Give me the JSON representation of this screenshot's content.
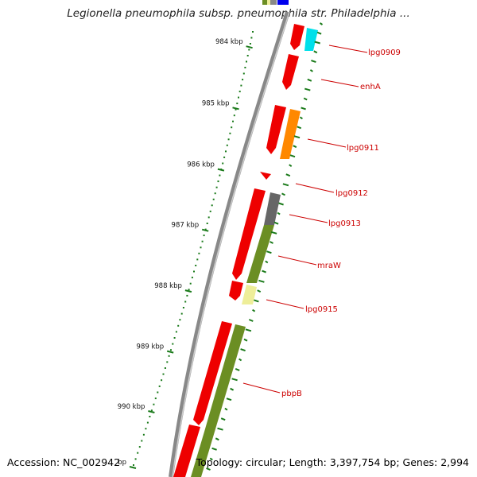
{
  "header": {
    "title": "Legionella pneumophila subsp. pneumophila str. Philadelphia ..."
  },
  "footer": {
    "accession": "Accession: NC_002942",
    "topology": "Topology: circular; Length: 3,397,754 bp; Genes: 2,994"
  },
  "ruler": {
    "ticks": [
      "984 kbp",
      "985 kbp",
      "986 kbp",
      "987 kbp",
      "988 kbp",
      "989 kbp",
      "990 kbp",
      "bp"
    ]
  },
  "genes": [
    {
      "name": "lpg0909",
      "color": "#00dddd"
    },
    {
      "name": "enhA",
      "color": "#ff0000"
    },
    {
      "name": "lpg0911",
      "color": "#ff8800"
    },
    {
      "name": "lpg0912",
      "color": "#ff0000"
    },
    {
      "name": "lpg0913",
      "color": "#666666"
    },
    {
      "name": "mraW",
      "color": "#6b8e23"
    },
    {
      "name": "lpg0915",
      "color": "#eeee99"
    },
    {
      "name": "pbpB",
      "color": "#6b8e23"
    }
  ],
  "colors": {
    "backbone": "#888888",
    "cds": "#ff0000",
    "gc_skew": "#1a7a1a",
    "label_line": "#cc0000"
  }
}
